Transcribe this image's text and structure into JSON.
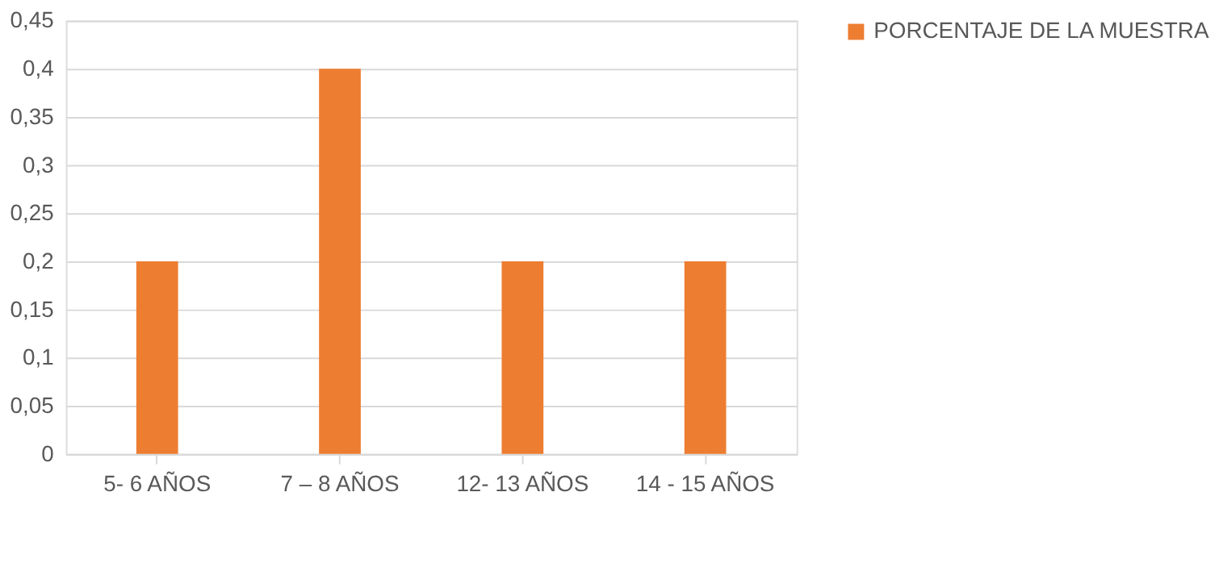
{
  "chart_data": {
    "type": "bar",
    "categories": [
      "5- 6 AÑOS",
      "7 – 8 AÑOS",
      "12- 13 AÑOS",
      "14  - 15 AÑOS"
    ],
    "series": [
      {
        "name": "PORCENTAJE DE LA MUESTRA",
        "color": "#ed7d31",
        "values": [
          0.2,
          0.4,
          0.2,
          0.2
        ]
      }
    ],
    "ylim": [
      0,
      0.45
    ],
    "yticks": [
      {
        "value": 0,
        "label": "0"
      },
      {
        "value": 0.05,
        "label": "0,05"
      },
      {
        "value": 0.1,
        "label": "0,1"
      },
      {
        "value": 0.15,
        "label": "0,15"
      },
      {
        "value": 0.2,
        "label": "0,2"
      },
      {
        "value": 0.25,
        "label": "0,25"
      },
      {
        "value": 0.3,
        "label": "0,3"
      },
      {
        "value": 0.35,
        "label": "0,35"
      },
      {
        "value": 0.4,
        "label": "0,4"
      },
      {
        "value": 0.45,
        "label": "0,45"
      }
    ],
    "grid": "y",
    "legend": "right"
  }
}
